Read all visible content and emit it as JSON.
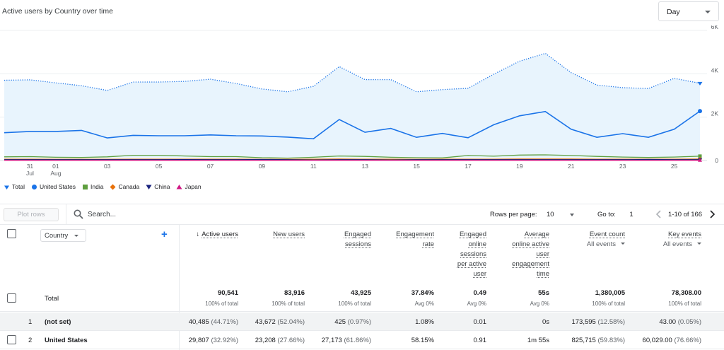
{
  "chart": {
    "title": "Active users by Country over time",
    "period_select": "Day",
    "y_ticks": [
      "6K",
      "4K",
      "2K",
      "0"
    ],
    "x_ticks": [
      {
        "top": "31",
        "bottom": "Jul",
        "i": 1
      },
      {
        "top": "01",
        "bottom": "Aug",
        "i": 2
      },
      {
        "top": "03",
        "bottom": "",
        "i": 4
      },
      {
        "top": "05",
        "bottom": "",
        "i": 6
      },
      {
        "top": "07",
        "bottom": "",
        "i": 8
      },
      {
        "top": "09",
        "bottom": "",
        "i": 10
      },
      {
        "top": "11",
        "bottom": "",
        "i": 12
      },
      {
        "top": "13",
        "bottom": "",
        "i": 14
      },
      {
        "top": "15",
        "bottom": "",
        "i": 16
      },
      {
        "top": "17",
        "bottom": "",
        "i": 18
      },
      {
        "top": "19",
        "bottom": "",
        "i": 20
      },
      {
        "top": "21",
        "bottom": "",
        "i": 22
      },
      {
        "top": "23",
        "bottom": "",
        "i": 24
      },
      {
        "top": "25",
        "bottom": "",
        "i": 26
      }
    ],
    "legend": [
      {
        "name": "Total",
        "color": "#1a73e8",
        "marker": "pin"
      },
      {
        "name": "United States",
        "color": "#1a73e8",
        "marker": "circle"
      },
      {
        "name": "India",
        "color": "#5f9f3f",
        "marker": "square"
      },
      {
        "name": "Canada",
        "color": "#e8710a",
        "marker": "diamond"
      },
      {
        "name": "China",
        "color": "#1a237e",
        "marker": "triangle-down"
      },
      {
        "name": "Japan",
        "color": "#d01884",
        "marker": "triangle-up"
      }
    ]
  },
  "chart_data": {
    "type": "line",
    "title": "Active users by Country over time",
    "ylim": [
      0,
      6000
    ],
    "x": [
      "Jul 30",
      "Jul 31",
      "Aug 01",
      "Aug 02",
      "Aug 03",
      "Aug 04",
      "Aug 05",
      "Aug 06",
      "Aug 07",
      "Aug 08",
      "Aug 09",
      "Aug 10",
      "Aug 11",
      "Aug 12",
      "Aug 13",
      "Aug 14",
      "Aug 15",
      "Aug 16",
      "Aug 17",
      "Aug 18",
      "Aug 19",
      "Aug 20",
      "Aug 21",
      "Aug 22",
      "Aug 23",
      "Aug 24",
      "Aug 25",
      "Aug 26"
    ],
    "series": [
      {
        "name": "Total",
        "color": "#1a73e8",
        "style": "dotted-area",
        "values": [
          3700,
          3720,
          3580,
          3450,
          3230,
          3620,
          3620,
          3650,
          3750,
          3550,
          3300,
          3170,
          3420,
          4330,
          3730,
          3730,
          3170,
          3270,
          3330,
          3980,
          4580,
          4940,
          4050,
          3480,
          3360,
          3320,
          3790,
          3560
        ]
      },
      {
        "name": "United States",
        "color": "#1a73e8",
        "style": "solid",
        "values": [
          1280,
          1340,
          1340,
          1390,
          1040,
          1160,
          1140,
          1140,
          1180,
          1140,
          1130,
          1080,
          1000,
          1890,
          1300,
          1480,
          1070,
          1250,
          1050,
          1650,
          2060,
          2260,
          1440,
          1070,
          1240,
          1070,
          1440,
          2280
        ]
      },
      {
        "name": "India",
        "color": "#5f9f3f",
        "style": "solid",
        "values": [
          170,
          180,
          150,
          140,
          170,
          240,
          240,
          210,
          180,
          180,
          130,
          110,
          150,
          210,
          190,
          150,
          130,
          120,
          230,
          200,
          250,
          260,
          230,
          190,
          160,
          140,
          160,
          200
        ]
      },
      {
        "name": "Canada",
        "color": "#e8710a",
        "style": "solid",
        "values": [
          60,
          60,
          55,
          55,
          55,
          60,
          60,
          60,
          60,
          60,
          55,
          55,
          60,
          70,
          60,
          60,
          55,
          60,
          60,
          60,
          70,
          70,
          70,
          60,
          60,
          60,
          60,
          70
        ]
      },
      {
        "name": "China",
        "color": "#1a237e",
        "style": "solid",
        "values": [
          40,
          40,
          40,
          40,
          40,
          40,
          40,
          45,
          40,
          40,
          50,
          40,
          30,
          40,
          40,
          30,
          40,
          40,
          40,
          40,
          40,
          40,
          40,
          40,
          40,
          50,
          40,
          40
        ]
      },
      {
        "name": "Japan",
        "color": "#d01884",
        "style": "solid",
        "values": [
          10,
          10,
          10,
          10,
          10,
          10,
          10,
          10,
          10,
          10,
          10,
          10,
          10,
          10,
          10,
          10,
          10,
          10,
          10,
          10,
          10,
          10,
          10,
          10,
          10,
          10,
          10,
          10
        ]
      }
    ]
  },
  "toolbar": {
    "plot_rows": "Plot rows",
    "search_placeholder": "Search...",
    "rows_per_page_label": "Rows per page:",
    "rows_per_page_value": "10",
    "goto_label": "Go to:",
    "goto_value": "1",
    "page_range": "1-10 of 166"
  },
  "table": {
    "dimension": "Country",
    "headers": [
      {
        "label": "Active users",
        "sub": "",
        "sorted": true
      },
      {
        "label": "New users",
        "sub": "",
        "sorted": false
      },
      {
        "label": "Engaged\nsessions",
        "sub": "",
        "sorted": false
      },
      {
        "label": "Engagement\nrate",
        "sub": "",
        "sorted": false
      },
      {
        "label": "Engaged\nonline\nsessions\nper active\nuser",
        "sub": "",
        "sorted": false
      },
      {
        "label": "Average\nonline active\nuser\nengagement\ntime",
        "sub": "",
        "sorted": false
      },
      {
        "label": "Event count",
        "sub": "All events",
        "sorted": false
      },
      {
        "label": "Key events",
        "sub": "All events",
        "sorted": false
      }
    ],
    "total": {
      "label": "Total",
      "values": [
        "90,541",
        "83,916",
        "43,925",
        "37.84%",
        "0.49",
        "55s",
        "1,380,005",
        "78,308.00"
      ],
      "subs": [
        "100% of total",
        "100% of total",
        "100% of total",
        "Avg 0%",
        "Avg 0%",
        "Avg 0%",
        "100% of total",
        "100% of total"
      ]
    },
    "rows": [
      {
        "num": "1",
        "name": "(not set)",
        "cells": [
          {
            "v": "40,485",
            "p": "(44.71%)"
          },
          {
            "v": "43,672",
            "p": "(52.04%)"
          },
          {
            "v": "425",
            "p": "(0.97%)"
          },
          {
            "v": "1.08%",
            "p": ""
          },
          {
            "v": "0.01",
            "p": ""
          },
          {
            "v": "0s",
            "p": ""
          },
          {
            "v": "173,595",
            "p": "(12.58%)"
          },
          {
            "v": "43.00",
            "p": "(0.05%)"
          }
        ]
      },
      {
        "num": "2",
        "name": "United States",
        "cells": [
          {
            "v": "29,807",
            "p": "(32.92%)"
          },
          {
            "v": "23,208",
            "p": "(27.66%)"
          },
          {
            "v": "27,173",
            "p": "(61.86%)"
          },
          {
            "v": "58.15%",
            "p": ""
          },
          {
            "v": "0.91",
            "p": ""
          },
          {
            "v": "1m 55s",
            "p": ""
          },
          {
            "v": "825,715",
            "p": "(59.83%)"
          },
          {
            "v": "60,029.00",
            "p": "(76.66%)"
          }
        ]
      }
    ]
  }
}
